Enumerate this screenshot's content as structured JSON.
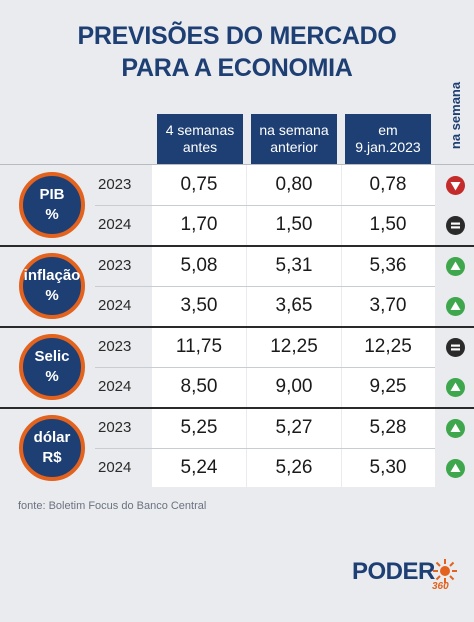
{
  "title_line1": "PREVISÕES DO MERCADO",
  "title_line2": "PARA A ECONOMIA",
  "side_label": "na semana",
  "headers": [
    "4 semanas\nantes",
    "na semana\nanterior",
    "em\n9.jan.2023"
  ],
  "groups": [
    {
      "label": "PIB\n%",
      "rows": [
        {
          "year": "2023",
          "values": [
            "0,75",
            "0,80",
            "0,78"
          ],
          "trend": "down"
        },
        {
          "year": "2024",
          "values": [
            "1,70",
            "1,50",
            "1,50"
          ],
          "trend": "equal"
        }
      ]
    },
    {
      "label": "inflação\n%",
      "rows": [
        {
          "year": "2023",
          "values": [
            "5,08",
            "5,31",
            "5,36"
          ],
          "trend": "up"
        },
        {
          "year": "2024",
          "values": [
            "3,50",
            "3,65",
            "3,70"
          ],
          "trend": "up"
        }
      ]
    },
    {
      "label": "Selic\n%",
      "rows": [
        {
          "year": "2023",
          "values": [
            "11,75",
            "12,25",
            "12,25"
          ],
          "trend": "equal"
        },
        {
          "year": "2024",
          "values": [
            "8,50",
            "9,00",
            "9,25"
          ],
          "trend": "up"
        }
      ]
    },
    {
      "label": "dólar\nR$",
      "rows": [
        {
          "year": "2023",
          "values": [
            "5,25",
            "5,27",
            "5,28"
          ],
          "trend": "up"
        },
        {
          "year": "2024",
          "values": [
            "5,24",
            "5,26",
            "5,30"
          ],
          "trend": "up"
        }
      ]
    }
  ],
  "footer": "fonte: Boletim Focus do Banco Central",
  "logo_text": "PODER",
  "logo_sub": "360",
  "colors": {
    "navy": "#1e3f73",
    "orange": "#e2621e",
    "up": "#3ea64c",
    "down": "#c42b2b",
    "equal": "#2a2a2a"
  }
}
